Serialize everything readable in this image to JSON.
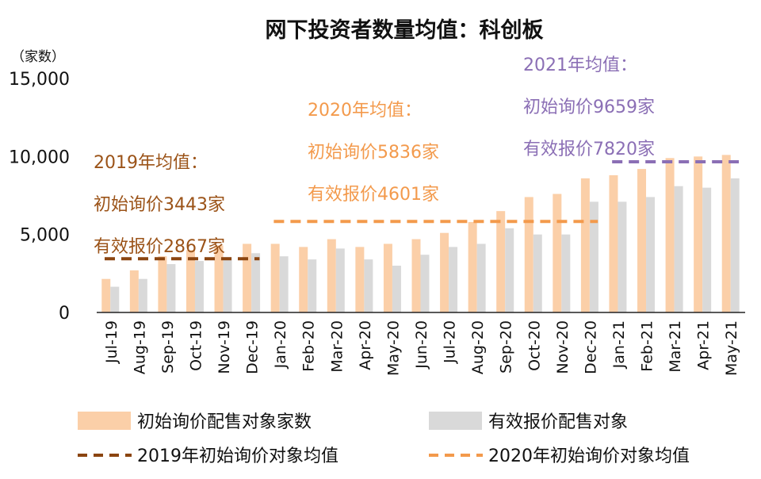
{
  "chart_data": {
    "type": "bar",
    "title": "网下投资者数量均值：科创板",
    "y_unit": "（家数）",
    "ylim": [
      0,
      15000
    ],
    "yticks": [
      "0",
      "5,000",
      "10,000",
      "15,000"
    ],
    "categories": [
      "Jul-19",
      "Aug-19",
      "Sep-19",
      "Oct-19",
      "Nov-19",
      "Dec-19",
      "Jan-20",
      "Feb-20",
      "Mar-20",
      "Apr-20",
      "May-20",
      "Jun-20",
      "Jul-20",
      "Aug-20",
      "Sep-20",
      "Oct-20",
      "Nov-20",
      "Dec-20",
      "Jan-21",
      "Feb-21",
      "Mar-21",
      "Apr-21",
      "May-21"
    ],
    "series": [
      {
        "name": "初始询价配售对象家数",
        "color": "#fbcfa8",
        "values": [
          2150,
          2700,
          3600,
          4000,
          4300,
          4400,
          4400,
          4200,
          4700,
          4200,
          4400,
          4700,
          5100,
          5800,
          6500,
          7400,
          7600,
          8600,
          8800,
          9200,
          9900,
          10000,
          10100
        ]
      },
      {
        "name": "有效报价配售对象",
        "color": "#d9d9d9",
        "values": [
          1650,
          2150,
          3100,
          3300,
          3550,
          3800,
          3600,
          3400,
          4100,
          3400,
          3000,
          3700,
          4200,
          4400,
          5400,
          5000,
          5000,
          7100,
          7100,
          7400,
          8100,
          8000,
          8600
        ]
      }
    ],
    "averages": [
      {
        "name": "2019年初始询价对象均值",
        "color": "#8b4510",
        "value": 3443,
        "from": 0,
        "to": 5
      },
      {
        "name": "2020年初始询价对象均值",
        "color": "#f39a4c",
        "value": 5836,
        "from": 6,
        "to": 17
      },
      {
        "name": "2021年均值",
        "color": "#8b6fb5",
        "value": 9659,
        "from": 18,
        "to": 22
      }
    ],
    "annotations": [
      {
        "key": "2019",
        "color": "#9b5318",
        "lines": [
          "2019年均值：",
          "初始询价3443家",
          "有效报价2867家"
        ]
      },
      {
        "key": "2020",
        "color": "#f39a4c",
        "lines": [
          "2020年均值：",
          "初始询价5836家",
          "有效报价4601家"
        ]
      },
      {
        "key": "2021",
        "color": "#8b6fb5",
        "lines": [
          "2021年均值：",
          "初始询价9659家",
          "有效报价7820家"
        ]
      }
    ],
    "legend": [
      "初始询价配售对象家数",
      "有效报价配售对象",
      "2019年初始询价对象均值",
      "2020年初始询价对象均值"
    ]
  }
}
